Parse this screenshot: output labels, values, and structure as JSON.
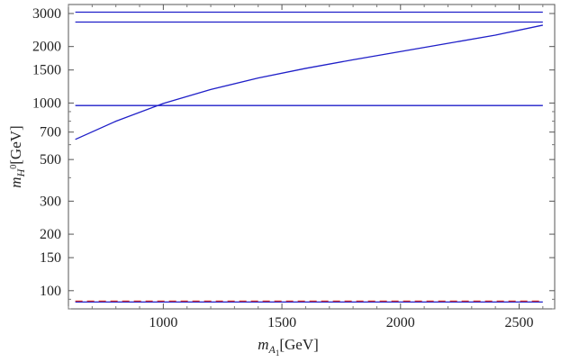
{
  "chart_data": {
    "type": "line",
    "title": "",
    "xlabel": {
      "symbol": "m",
      "subscript": "A",
      "subsubscript": "1",
      "unit": "[GeV]"
    },
    "ylabel": {
      "symbol": "m",
      "subscript": "H",
      "superscript": "0",
      "unit": "[GeV]"
    },
    "xlim": [
      600,
      2650
    ],
    "ylim": [
      80,
      3350
    ],
    "yscale": "log",
    "grid": false,
    "x_ticks": [
      1000,
      1500,
      2000,
      2500
    ],
    "y_ticks": [
      100,
      150,
      200,
      300,
      500,
      700,
      1000,
      1500,
      2000,
      3000
    ],
    "series": [
      {
        "color": "#1f1fc8",
        "style": "solid",
        "x": [
          629,
          2600
        ],
        "y": [
          3050,
          3050
        ]
      },
      {
        "color": "#1f1fc8",
        "style": "solid",
        "x": [
          629,
          2600
        ],
        "y": [
          2700,
          2700
        ]
      },
      {
        "color": "#1f1fc8",
        "style": "solid",
        "x": [
          629,
          2600
        ],
        "y": [
          970,
          970
        ]
      },
      {
        "color": "#1f1fc8",
        "style": "solid",
        "x": [
          629,
          2600
        ],
        "y": [
          87,
          87
        ]
      },
      {
        "color": "#d03030",
        "style": "dashed",
        "x": [
          629,
          2600
        ],
        "y": [
          88,
          88
        ]
      },
      {
        "color": "#1f1fc8",
        "style": "solid",
        "x": [
          629,
          800,
          1000,
          1200,
          1400,
          1600,
          1800,
          2000,
          2200,
          2400,
          2600
        ],
        "y": [
          640,
          800,
          995,
          1180,
          1360,
          1530,
          1700,
          1880,
          2080,
          2300,
          2600
        ]
      }
    ]
  }
}
